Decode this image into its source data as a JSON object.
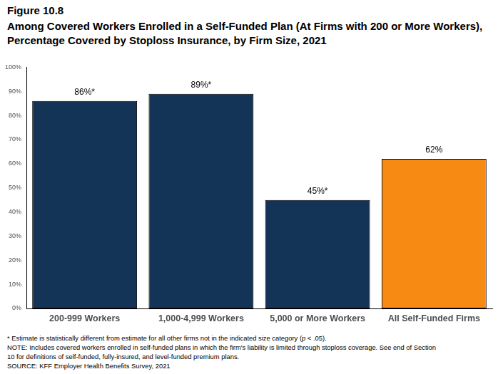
{
  "chart_data": {
    "type": "bar",
    "figure_number": "Figure 10.8",
    "title": [
      "Among Covered Workers Enrolled in a Self-Funded Plan (At Firms with 200 or More Workers),",
      "Percentage Covered by Stoploss Insurance, by Firm Size, 2021"
    ],
    "categories": [
      "200-999 Workers",
      "1,000-4,999 Workers",
      "5,000 or More Workers",
      "All Self-Funded Firms"
    ],
    "values": [
      86,
      89,
      45,
      62
    ],
    "value_labels": [
      "86%*",
      "89%*",
      "45%*",
      "62%"
    ],
    "colors": [
      "#143457",
      "#143457",
      "#143457",
      "#f68a12"
    ],
    "data_labels": true,
    "ylim": [
      0,
      100
    ],
    "yticks": [
      {
        "value": 0,
        "label": "0%"
      },
      {
        "value": 10,
        "label": "10%"
      },
      {
        "value": 20,
        "label": "20%"
      },
      {
        "value": 30,
        "label": "30%"
      },
      {
        "value": 40,
        "label": "40%"
      },
      {
        "value": 50,
        "label": "50%"
      },
      {
        "value": 60,
        "label": "60%"
      },
      {
        "value": 70,
        "label": "70%"
      },
      {
        "value": 80,
        "label": "80%"
      },
      {
        "value": 90,
        "label": "90%"
      },
      {
        "value": 100,
        "label": "100%"
      }
    ],
    "grid": false,
    "notes": [
      "* Estimate is statistically different from estimate for all other firms not in the indicated size category (p < .05).",
      "NOTE: Includes covered workers enrolled in self-funded plans in which the firm's liability is limited through stoploss coverage. See end of Section",
      "10 for definitions of self-funded, fully-insured, and level-funded premium plans.",
      "SOURCE: KFF Employer Health Benefits Survey, 2021"
    ]
  }
}
